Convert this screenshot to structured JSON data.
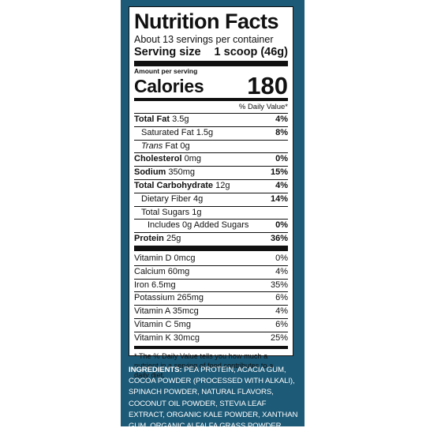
{
  "label": {
    "title": "Nutrition Facts",
    "servings_per_container": "About 13 servings per container",
    "serving_size_label": "Serving size",
    "serving_size_value": "1 scoop (46g)",
    "amount_per_serving": "Amount per serving",
    "calories_label": "Calories",
    "calories_value": "180",
    "daily_value_header": "% Daily Value*",
    "nutrients": [
      {
        "name": "Total Fat",
        "amount": "3.5g",
        "dv": "4%"
      },
      {
        "name": "Saturated Fat",
        "amount": "1.5g",
        "dv": "8%"
      },
      {
        "name": "Trans",
        "amount": "Fat 0g",
        "dv": ""
      },
      {
        "name": "Cholesterol",
        "amount": "0mg",
        "dv": "0%"
      },
      {
        "name": "Sodium",
        "amount": "350mg",
        "dv": "15%"
      },
      {
        "name": "Total Carbohydrate",
        "amount": "12g",
        "dv": "4%"
      },
      {
        "name": "Dietary Fiber",
        "amount": "4g",
        "dv": "14%"
      },
      {
        "name": "Total Sugars",
        "amount": "1g",
        "dv": ""
      },
      {
        "name": "Includes 0g Added Sugars",
        "amount": "",
        "dv": "0%"
      },
      {
        "name": "Protein",
        "amount": "25g",
        "dv": "36%"
      }
    ],
    "vitamins": [
      {
        "name": "Vitamin D 0mcg",
        "dv": "0%"
      },
      {
        "name": "Calcium 60mg",
        "dv": "4%"
      },
      {
        "name": "Iron 6.5mg",
        "dv": "35%"
      },
      {
        "name": "Potassium 265mg",
        "dv": "6%"
      },
      {
        "name": "Vitamin A 35mcg",
        "dv": "4%"
      },
      {
        "name": "Vitamin C 5mg",
        "dv": "6%"
      },
      {
        "name": "Vitamin K 30mcg",
        "dv": "25%"
      }
    ],
    "footnote": "* The % Daily Value tells you how much a nutrient in a serving of food contributes to a daily diet."
  },
  "ingredients": {
    "header": "INGREDIENTS:",
    "text": "PEA PROTEIN, ACACIA GUM, COCOA POWDER (PROCESSED WITH ALKALI), SPINACH POWDER, NATURAL FLAVORS, COCONUT OIL POWDER, STEVIA LEAF EXTRACT, ORGANIC KALE POWDER, XANTHAN GUM, ORGANIC ALFALFA GRASS POWDER, ROSEMARY EXTRACT, BROCCOLI POWDER."
  },
  "colors": {
    "panel": "#1d5a77",
    "label_bg": "#ffffff",
    "text": "#111111"
  }
}
